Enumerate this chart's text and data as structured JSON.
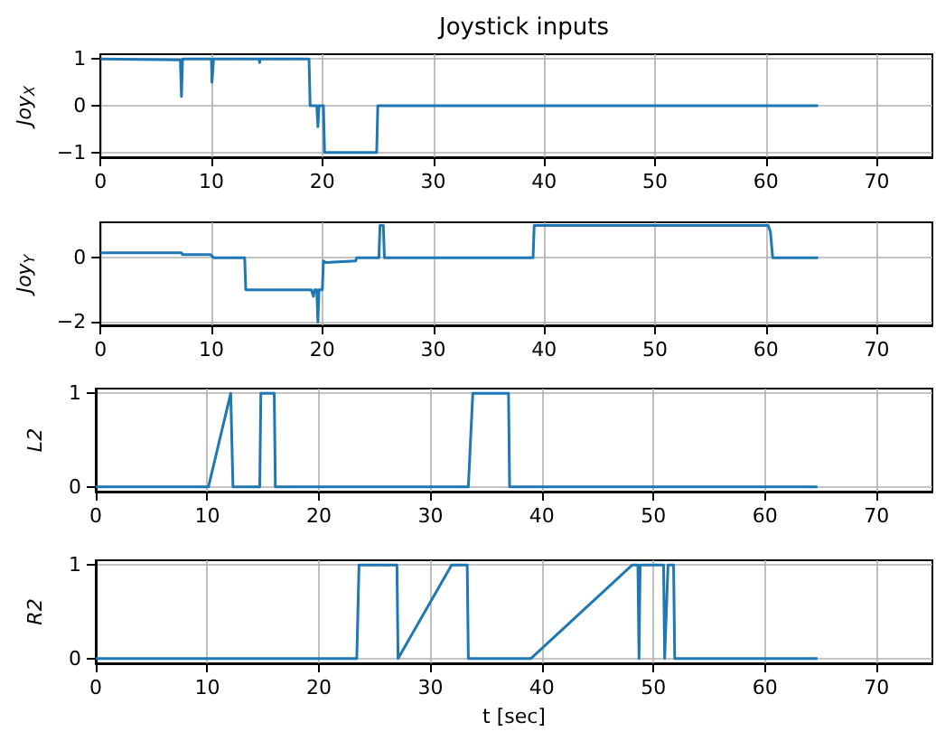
{
  "chart_data": [
    {
      "type": "line",
      "title": "Joystick inputs",
      "ylabel": "Joy$_{X}$",
      "grid": true,
      "xlim": [
        0,
        75
      ],
      "xticks": [
        0,
        10,
        20,
        30,
        40,
        50,
        60,
        70
      ],
      "ylim": [
        -1.1,
        1.1
      ],
      "yticks": [
        -1,
        0,
        1
      ],
      "series": [
        {
          "color": "#1f77b4",
          "x": [
            0,
            7.2,
            7.3,
            7.4,
            10,
            10.05,
            10.2,
            14.3,
            14.35,
            14.4,
            18.8,
            18.9,
            19.5,
            19.6,
            19.7,
            20.1,
            20.2,
            24.9,
            25,
            64.7
          ],
          "values": [
            1,
            0.98,
            0.2,
            1,
            1,
            0.5,
            1,
            1,
            0.92,
            1,
            1,
            0,
            0,
            -0.45,
            0,
            0,
            -1,
            -1,
            0,
            0
          ]
        }
      ]
    },
    {
      "type": "line",
      "ylabel": "Joy$_{Y}$",
      "grid": true,
      "xlim": [
        0,
        75
      ],
      "xticks": [
        0,
        10,
        20,
        30,
        40,
        50,
        60,
        70
      ],
      "ylim": [
        -2.1,
        1.1
      ],
      "yticks": [
        -2,
        0
      ],
      "series": [
        {
          "color": "#1f77b4",
          "x": [
            0,
            7.3,
            7.4,
            9.9,
            10.2,
            13,
            13.1,
            19,
            19.2,
            19.3,
            19.5,
            19.6,
            19.7,
            20,
            20.1,
            20.3,
            23,
            23.1,
            25.1,
            25.2,
            25.5,
            25.6,
            39,
            39.1,
            60.2,
            60.4,
            60.6,
            64.7
          ],
          "values": [
            0.15,
            0.15,
            0.1,
            0.1,
            0,
            0,
            -1,
            -1,
            -1.2,
            -1,
            -1,
            -2,
            -1,
            -1,
            -0.1,
            -0.15,
            -0.1,
            0,
            0,
            1,
            1,
            0,
            0,
            1,
            1,
            0.8,
            0,
            0
          ]
        }
      ]
    },
    {
      "type": "line",
      "ylabel": "L2",
      "grid": true,
      "xlim": [
        0,
        75
      ],
      "xticks": [
        0,
        10,
        20,
        30,
        40,
        50,
        60,
        70
      ],
      "ylim": [
        -0.05,
        1.05
      ],
      "yticks": [
        0,
        1
      ],
      "series": [
        {
          "color": "#1f77b4",
          "x": [
            0,
            10.1,
            12.1,
            12.3,
            14.7,
            14.8,
            16,
            16.1,
            33.4,
            33.8,
            37,
            37.1,
            64.7
          ],
          "values": [
            0,
            0,
            1,
            0,
            0,
            1,
            1,
            0,
            0,
            1,
            1,
            0,
            0
          ]
        }
      ]
    },
    {
      "type": "line",
      "ylabel": "R2",
      "xlabel": "t [sec]",
      "grid": true,
      "xlim": [
        0,
        75
      ],
      "xticks": [
        0,
        10,
        20,
        30,
        40,
        50,
        60,
        70
      ],
      "ylim": [
        -0.05,
        1.05
      ],
      "yticks": [
        0,
        1
      ],
      "series": [
        {
          "color": "#1f77b4",
          "x": [
            0,
            23.4,
            23.6,
            27,
            27.1,
            31.9,
            33.3,
            33.4,
            39,
            48.1,
            48.6,
            48.7,
            48.8,
            50.9,
            51,
            51.3,
            51.8,
            51.9,
            64.7
          ],
          "values": [
            0,
            0,
            1,
            1,
            0,
            1,
            1,
            0,
            0,
            1,
            1,
            0,
            1,
            1,
            0,
            1,
            1,
            0,
            0
          ]
        }
      ]
    }
  ]
}
